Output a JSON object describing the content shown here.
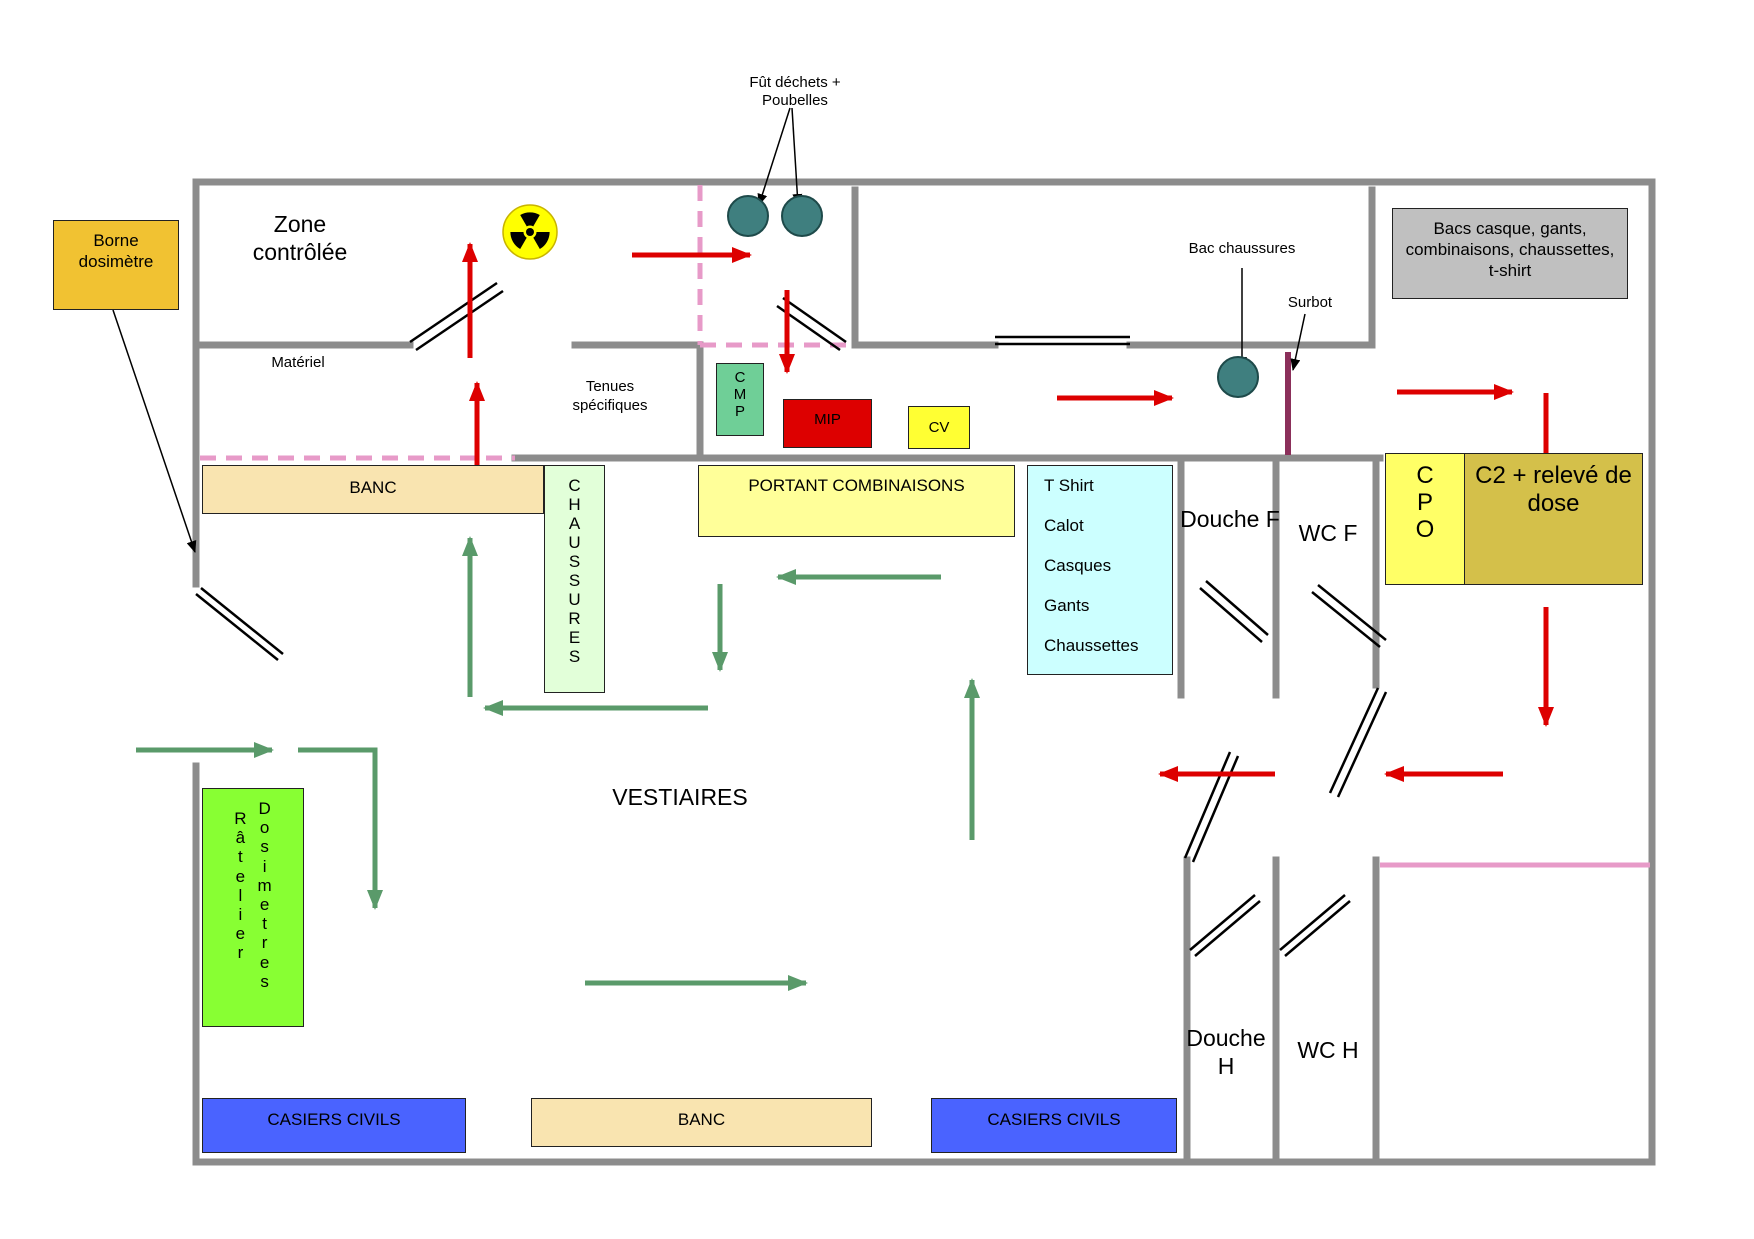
{
  "labels": {
    "borne_dosimetre": "Borne dosimètre",
    "zone_controlee": "Zone contrôlée",
    "fut_dechets": "Fût déchets + Poubelles",
    "bac_chaussures": "Bac chaussures",
    "surbot": "Surbot",
    "bacs_casque": "Bacs casque, gants, combinaisons, chaussettes, t-shirt",
    "materiel": "Matériel",
    "tenues_specifiques": "Tenues spécifiques",
    "cmp": "CMP",
    "mip": "MIP",
    "cv": "CV",
    "banc_top": "BANC",
    "chaussures": "CHAUSSURES",
    "portant": "PORTANT COMBINAISONS",
    "douche_f": "Douche F",
    "wc_f": "WC F",
    "cpo": "CPO",
    "c2_releve": "C2 + relevé de dose",
    "vestiaires": "VESTIAIRES",
    "ratelier": "Râtelier",
    "dosimetres": "Dosimetres",
    "casiers_left": "CASIERS CIVILS",
    "banc_bottom": "BANC",
    "casiers_right": "CASIERS CIVILS",
    "douche_h": "Douche H",
    "wc_h": "WC H"
  },
  "shelf_items": [
    "T Shirt",
    "Calot",
    "Casques",
    "Gants",
    "Chaussettes"
  ],
  "icons": {
    "radiation": "radiation-trefoil-icon",
    "barrel": "teal-circle-bin-icon"
  },
  "colors": {
    "wall": "#8c8c8c",
    "red_arrow": "#dd0000",
    "green_arrow": "#5a9a6a",
    "zone_boundary": "#e79ac8",
    "bin": "#3f7f7f",
    "borne": "#f1c232",
    "bacs": "#c0c0c0",
    "cmp": "#6fcf97",
    "mip": "#dd0000",
    "cv": "#ffff33",
    "banc": "#f9e4b0",
    "chaussures": "#e2ffd9",
    "portant": "#ffff99",
    "shelf": "#ccffff",
    "cpo": "#ffff66",
    "c2": "#d4c04a",
    "ratelier": "#88ff33",
    "casiers": "#4a63ff"
  }
}
